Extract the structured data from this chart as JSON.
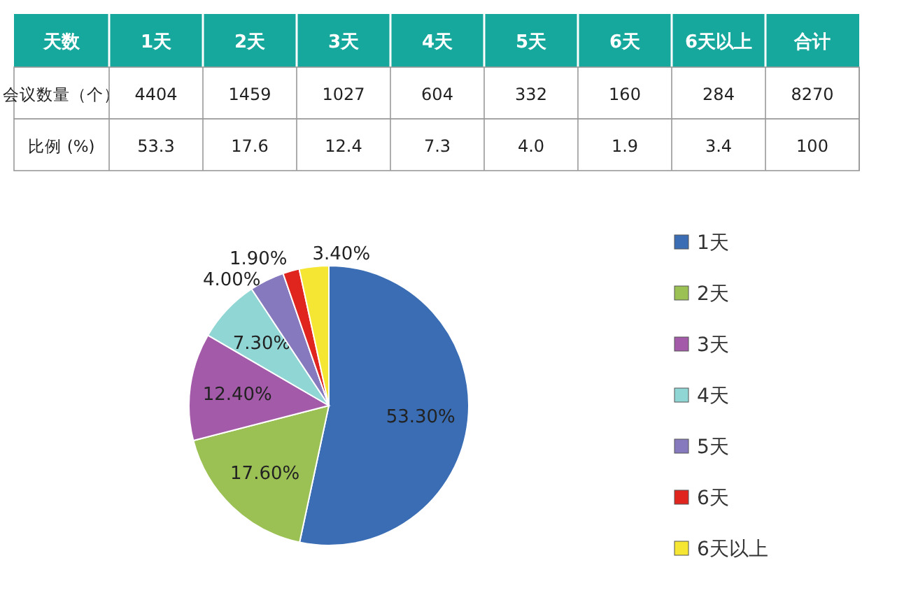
{
  "chart_data": [
    {
      "type": "heatmap",
      "xlabel": "天数",
      "categories": [
        "1天",
        "2天",
        "3天",
        "4天",
        "5天",
        "6天",
        "6天以上",
        "合计"
      ],
      "y_categories": [
        "会议数量（个）",
        "比例 (%)"
      ],
      "cells": [
        [
          4404,
          1459,
          1027,
          604,
          332,
          160,
          284,
          8270
        ],
        [
          53.3,
          17.6,
          12.4,
          7.3,
          4.0,
          1.9,
          3.4,
          100
        ]
      ],
      "cell_labels": [
        [
          "4404",
          "1459",
          "1027",
          "604",
          "332",
          "160",
          "284",
          "8270"
        ],
        [
          "53.3",
          "17.6",
          "12.4",
          "7.3",
          "4.0",
          "1.9",
          "3.4",
          "100"
        ]
      ],
      "color": "#16a89c",
      "data_labels": true
    },
    {
      "type": "pie",
      "categories": [
        "1天",
        "2天",
        "3天",
        "4天",
        "5天",
        "6天",
        "6天以上"
      ],
      "values": [
        53.3,
        17.6,
        12.4,
        7.3,
        4.0,
        1.9,
        3.4
      ],
      "colors": [
        "#3a6db3",
        "#9bc155",
        "#a35aa8",
        "#8fd6d4",
        "#8679bd",
        "#e0251f",
        "#f4e632"
      ],
      "value_labels": [
        "53.30%",
        "17.60%",
        "12.40%",
        "7.30%",
        "4.00%",
        "1.90%",
        "3.40%"
      ],
      "legend": "right"
    }
  ]
}
